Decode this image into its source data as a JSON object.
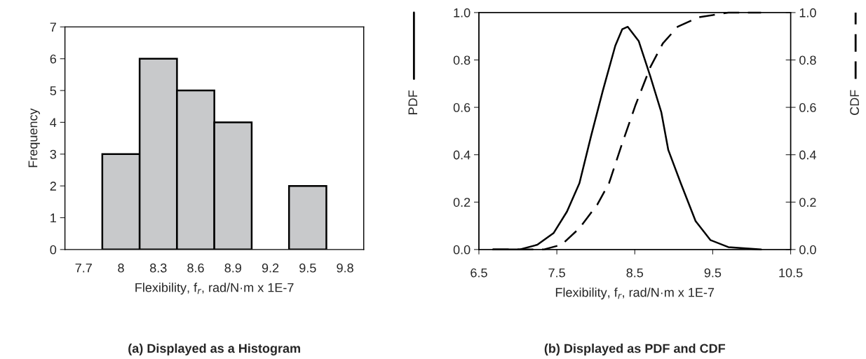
{
  "chart_data": [
    {
      "type": "bar",
      "title": "(a) Displayed as a Histogram",
      "xlabel": "Flexibility, f$_{r}$, rad/N·m x 1E-7",
      "ylabel": "Frequency",
      "categories": [
        "7.7",
        "8",
        "8.3",
        "8.6",
        "8.9",
        "9.2",
        "9.5",
        "9.8"
      ],
      "values": [
        0,
        3,
        6,
        5,
        4,
        0,
        2,
        0
      ],
      "color": "#c8c9cb",
      "ylim": [
        0,
        7
      ],
      "yticks": [
        0,
        1,
        2,
        3,
        4,
        5,
        6,
        7
      ],
      "grid": false
    },
    {
      "type": "line",
      "title": "(b) Displayed as PDF and CDF",
      "xlabel": "Flexibility, f$_{r}$, rad/N·m x 1E-7",
      "ylabel": "PDF",
      "y2label": "CDF",
      "xlim": [
        6.5,
        10.5
      ],
      "xticks": [
        6.5,
        7.5,
        8.5,
        9.5,
        10.5
      ],
      "ylim": [
        0,
        1
      ],
      "yticks": [
        {
          "value": 0,
          "label": "0.0"
        },
        {
          "value": 0.2,
          "label": "0.2"
        },
        {
          "value": 0.4,
          "label": "0.4"
        },
        {
          "value": 0.6,
          "label": "0.6"
        },
        {
          "value": 0.8,
          "label": "0.8"
        },
        {
          "value": 1,
          "label": "1.0"
        }
      ],
      "y2lim": [
        0,
        1
      ],
      "y2ticks": [
        {
          "value": 0,
          "label": "0.0"
        },
        {
          "value": 0.2,
          "label": "0.2"
        },
        {
          "value": 0.4,
          "label": "0.4"
        },
        {
          "value": 0.6,
          "label": "0.6"
        },
        {
          "value": 0.8,
          "label": "0.8"
        },
        {
          "value": 1,
          "label": "1.0"
        }
      ],
      "grid": false,
      "marker": "none",
      "series": [
        {
          "color": "#000000",
          "line_style": "solid",
          "x": [
            6.68,
            7.02,
            7.25,
            7.46,
            7.63,
            7.79,
            7.94,
            8.09,
            8.25,
            8.34,
            8.41,
            8.55,
            8.7,
            8.84,
            8.93,
            9.09,
            9.28,
            9.47,
            9.7,
            10.12
          ],
          "values": [
            0,
            0,
            0.02,
            0.07,
            0.16,
            0.28,
            0.48,
            0.67,
            0.86,
            0.93,
            0.94,
            0.88,
            0.73,
            0.58,
            0.42,
            0.28,
            0.12,
            0.04,
            0.01,
            0
          ]
        },
        {
          "color": "#000000",
          "line_style": "dashed",
          "axis": "y2",
          "x": [
            6.68,
            7.33,
            7.56,
            7.79,
            8.02,
            8.17,
            8.32,
            8.51,
            8.7,
            8.86,
            9.05,
            9.32,
            9.7,
            10.12
          ],
          "values": [
            0,
            0,
            0.02,
            0.09,
            0.19,
            0.28,
            0.43,
            0.61,
            0.77,
            0.87,
            0.94,
            0.98,
            1,
            1
          ]
        }
      ]
    }
  ]
}
